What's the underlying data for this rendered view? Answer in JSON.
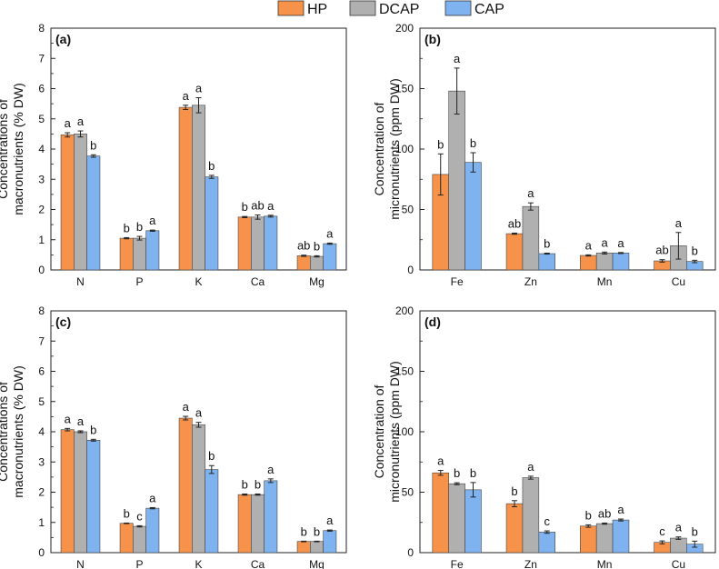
{
  "legend": [
    {
      "name": "HP",
      "color": "#f7924a"
    },
    {
      "name": "DCAP",
      "color": "#b0b0b0"
    },
    {
      "name": "CAP",
      "color": "#7fb3ef"
    }
  ],
  "chart_data": [
    {
      "type": "bar",
      "panel": "(a)",
      "ylabel": [
        "Concentrations of",
        "macronutrients (% DW)"
      ],
      "ylim": [
        0,
        8
      ],
      "yticks": [
        0,
        1,
        2,
        3,
        4,
        5,
        6,
        7,
        8
      ],
      "categories": [
        "N",
        "P",
        "K",
        "Ca",
        "Mg"
      ],
      "series": [
        {
          "name": "HP",
          "values": [
            4.47,
            1.05,
            5.38,
            1.75,
            0.47
          ],
          "errors": [
            0.07,
            0.02,
            0.07,
            0.02,
            0.02
          ],
          "letters": [
            "a",
            "b",
            "a",
            "b",
            "ab"
          ]
        },
        {
          "name": "DCAP",
          "values": [
            4.5,
            1.05,
            5.45,
            1.75,
            0.45
          ],
          "errors": [
            0.1,
            0.06,
            0.25,
            0.07,
            0.02
          ],
          "letters": [
            "a",
            "b",
            "a",
            "ab",
            "b"
          ]
        },
        {
          "name": "CAP",
          "values": [
            3.77,
            1.3,
            3.08,
            1.78,
            0.87
          ],
          "errors": [
            0.04,
            0.02,
            0.05,
            0.03,
            0.02
          ],
          "letters": [
            "b",
            "a",
            "b",
            "a",
            "a"
          ]
        }
      ]
    },
    {
      "type": "bar",
      "panel": "(b)",
      "ylabel": [
        "Concentration of",
        "micronutrients (ppm DW)"
      ],
      "ylim": [
        0,
        200
      ],
      "yticks": [
        0,
        50,
        100,
        150,
        200
      ],
      "categories": [
        "Fe",
        "Zn",
        "Mn",
        "Cu"
      ],
      "series": [
        {
          "name": "HP",
          "values": [
            79,
            30,
            12,
            7.5
          ],
          "errors": [
            17,
            0.5,
            0.5,
            1
          ],
          "letters": [
            "b",
            "ab",
            "a",
            "ab"
          ]
        },
        {
          "name": "DCAP",
          "values": [
            148,
            52.5,
            14,
            20
          ],
          "errors": [
            19,
            3,
            0.8,
            11
          ],
          "letters": [
            "a",
            "a",
            "a",
            "a"
          ]
        },
        {
          "name": "CAP",
          "values": [
            89,
            13.5,
            14,
            7
          ],
          "errors": [
            8,
            0.4,
            0.4,
            1
          ],
          "letters": [
            "b",
            "b",
            "a",
            "b"
          ]
        }
      ]
    },
    {
      "type": "bar",
      "panel": "(c)",
      "ylabel": [
        "Concentrations of",
        "macronutrients (% DW)"
      ],
      "ylim": [
        0,
        8
      ],
      "yticks": [
        0,
        1,
        2,
        3,
        4,
        5,
        6,
        7,
        8
      ],
      "categories": [
        "N",
        "P",
        "K",
        "Ca",
        "Mg"
      ],
      "series": [
        {
          "name": "HP",
          "values": [
            4.07,
            0.97,
            4.45,
            1.92,
            0.37
          ],
          "errors": [
            0.04,
            0.01,
            0.06,
            0.02,
            0.01
          ],
          "letters": [
            "a",
            "b",
            "a",
            "b",
            "b"
          ]
        },
        {
          "name": "DCAP",
          "values": [
            4.0,
            0.87,
            4.23,
            1.92,
            0.37
          ],
          "errors": [
            0.03,
            0.02,
            0.08,
            0.02,
            0.01
          ],
          "letters": [
            "a",
            "c",
            "a",
            "b",
            "b"
          ]
        },
        {
          "name": "CAP",
          "values": [
            3.72,
            1.47,
            2.75,
            2.38,
            0.73
          ],
          "errors": [
            0.03,
            0.02,
            0.13,
            0.06,
            0.02
          ],
          "letters": [
            "b",
            "a",
            "b",
            "a",
            "a"
          ]
        }
      ]
    },
    {
      "type": "bar",
      "panel": "(d)",
      "ylabel": [
        "Concentration of",
        "micronutrients (ppm DW)"
      ],
      "ylim": [
        0,
        200
      ],
      "yticks": [
        0,
        50,
        100,
        150,
        200
      ],
      "categories": [
        "Fe",
        "Zn",
        "Mn",
        "Cu"
      ],
      "series": [
        {
          "name": "HP",
          "values": [
            66,
            40.5,
            22,
            8.5
          ],
          "errors": [
            2,
            2.5,
            1,
            1.2
          ],
          "letters": [
            "a",
            "b",
            "b",
            "c"
          ]
        },
        {
          "name": "DCAP",
          "values": [
            57,
            62,
            24,
            12
          ],
          "errors": [
            0.8,
            1.2,
            0.5,
            1
          ],
          "letters": [
            "b",
            "a",
            "ab",
            "a"
          ]
        },
        {
          "name": "CAP",
          "values": [
            52,
            17,
            27,
            7
          ],
          "errors": [
            6,
            1,
            0.8,
            2.5
          ],
          "letters": [
            "b",
            "c",
            "a",
            "b"
          ]
        }
      ]
    }
  ]
}
